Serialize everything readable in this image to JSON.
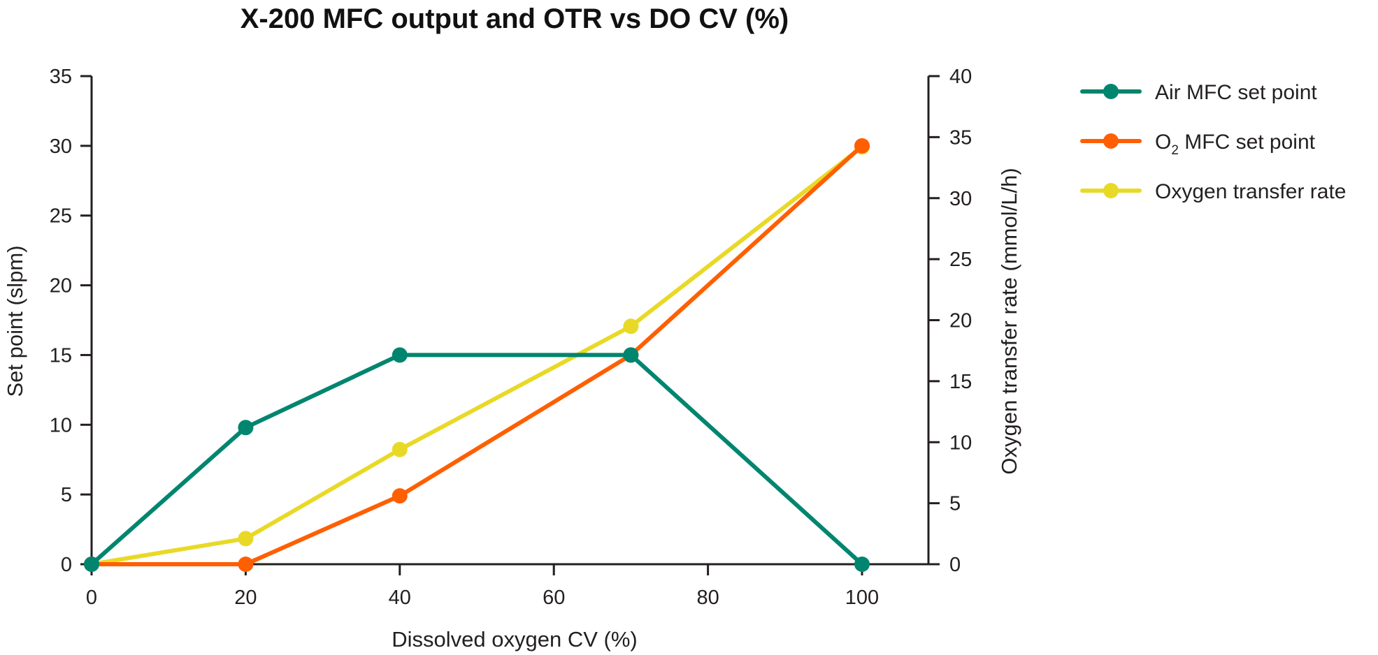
{
  "chart_data": {
    "type": "line",
    "title": "X-200 MFC output and OTR vs DO CV (%)",
    "xlabel": "Dissolved oxygen CV (%)",
    "ylabel": "Set point (slpm)",
    "y2label": "Oxygen transfer rate (mmol/L/h)",
    "xlim": [
      0,
      110
    ],
    "ylim": [
      0,
      35
    ],
    "y2lim": [
      0,
      40
    ],
    "x_ticks": [
      0,
      20,
      40,
      60,
      80,
      100
    ],
    "y_ticks": [
      0,
      5,
      10,
      15,
      20,
      25,
      30,
      35
    ],
    "y2_ticks": [
      0,
      5,
      10,
      15,
      20,
      25,
      30,
      35,
      40
    ],
    "grid": false,
    "legend_position": "top-right, outside plot",
    "series": [
      {
        "name": "Air MFC set point",
        "axis": "left",
        "color": "#00856f",
        "x": [
          0,
          20,
          40,
          70,
          100
        ],
        "values": [
          0,
          9.8,
          15,
          15,
          0
        ]
      },
      {
        "name": "O2 MFC set point",
        "name_main": "O",
        "name_sub": "2",
        "name_rest": " MFC set point",
        "axis": "left",
        "color": "#ff5f00",
        "x": [
          0,
          20,
          40,
          70,
          100
        ],
        "values": [
          0,
          0,
          4.9,
          15,
          30
        ]
      },
      {
        "name": "Oxygen transfer rate",
        "axis": "right",
        "color": "#e9d927",
        "x": [
          0,
          20,
          40,
          70,
          100
        ],
        "values": [
          0,
          2.1,
          9.4,
          19.5,
          34.2
        ]
      }
    ]
  }
}
